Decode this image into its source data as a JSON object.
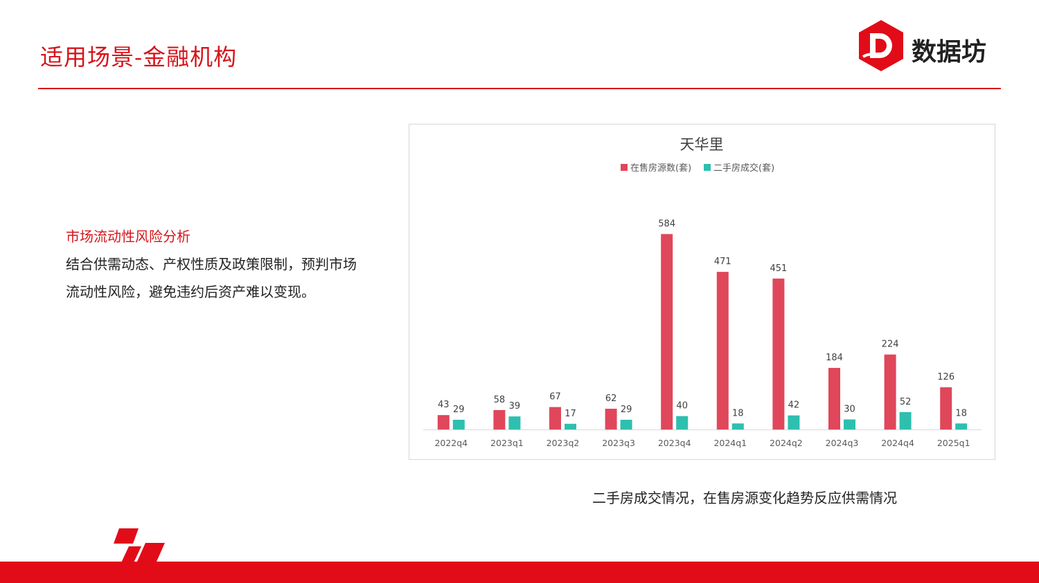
{
  "header": {
    "title": "适用场景-金融机构",
    "logo_text": "数据坊"
  },
  "content": {
    "heading": "市场流动性风险分析",
    "line1": "结合供需动态、产权性质及政策限制，预判市场",
    "line2": "流动性风险，避免违约后资产难以变现。"
  },
  "caption": "二手房成交情况，在售房源变化趋势反应供需情况",
  "colors": {
    "accent": "#d7141a",
    "series1": "#e0475a",
    "series2": "#2ebfaf"
  },
  "chart_data": {
    "type": "bar",
    "title": "天华里",
    "legend_position": "top",
    "grid": false,
    "categories": [
      "2022q4",
      "2023q1",
      "2023q2",
      "2023q3",
      "2023q4",
      "2024q1",
      "2024q2",
      "2024q3",
      "2024q4",
      "2025q1"
    ],
    "series": [
      {
        "name": "在售房源数(套)",
        "values": [
          43,
          58,
          67,
          62,
          584,
          471,
          451,
          184,
          224,
          126
        ]
      },
      {
        "name": "二手房成交(套)",
        "values": [
          29,
          39,
          17,
          29,
          40,
          18,
          42,
          30,
          52,
          18
        ]
      }
    ],
    "ylim": [
      0,
      620
    ]
  }
}
